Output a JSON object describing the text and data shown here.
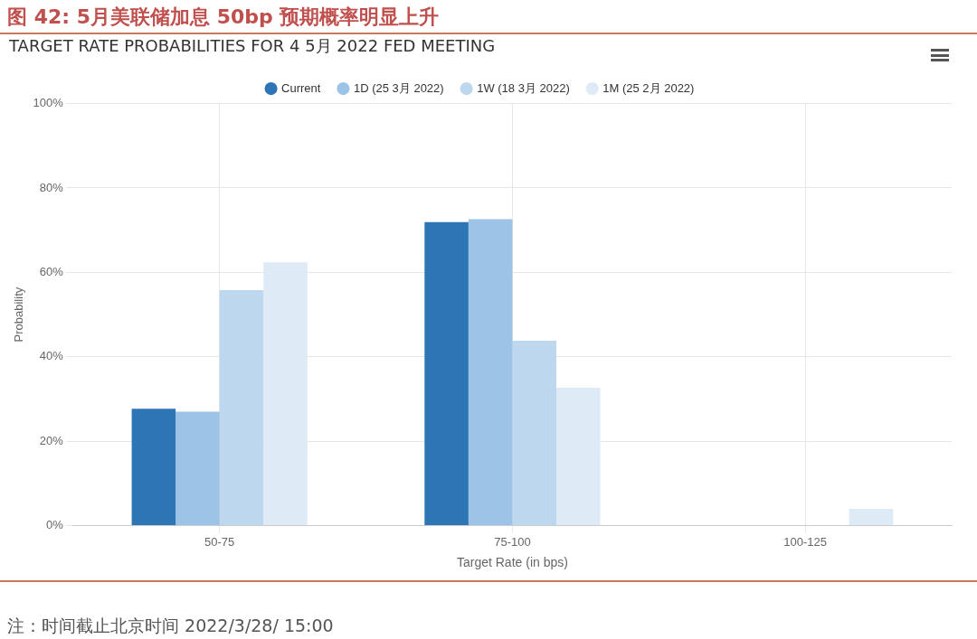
{
  "chart_data": {
    "type": "bar",
    "title": "图 42: 5月美联储加息 50bp 预期概率明显上升",
    "subtitle": "TARGET RATE PROBABILITIES FOR 4 5月 2022 FED MEETING",
    "xlabel": "Target Rate (in bps)",
    "ylabel": "Probability",
    "categories": [
      "50-75",
      "75-100",
      "100-125"
    ],
    "series": [
      {
        "name": "Current",
        "color": "#2e75b6",
        "values": [
          27.7,
          71.9,
          0
        ]
      },
      {
        "name": "1D (25 3月 2022)",
        "color": "#9dc3e6",
        "values": [
          27.0,
          72.6,
          0
        ]
      },
      {
        "name": "1W (18 3月 2022)",
        "color": "#bdd7ee",
        "values": [
          55.8,
          43.8,
          0
        ]
      },
      {
        "name": "1M (25 2月 2022)",
        "color": "#deebf7",
        "values": [
          62.4,
          32.7,
          4.0
        ]
      }
    ],
    "ylim": [
      0,
      100
    ],
    "yticks": [
      {
        "value": 0,
        "label": "0%"
      },
      {
        "value": 20,
        "label": "20%"
      },
      {
        "value": 40,
        "label": "40%"
      },
      {
        "value": 60,
        "label": "60%"
      },
      {
        "value": 80,
        "label": "80%"
      },
      {
        "value": 100,
        "label": "100%"
      }
    ],
    "grid": true,
    "legend": "top",
    "annotations": [
      "注：时间截止北京时间 2022/3/28/ 15:00"
    ]
  }
}
